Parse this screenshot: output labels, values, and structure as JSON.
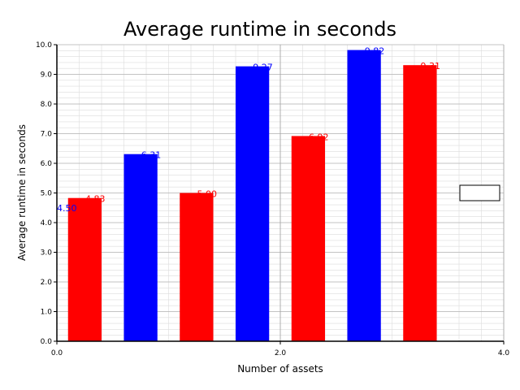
{
  "chart_data": {
    "type": "bar",
    "title": "Average runtime in seconds",
    "xlabel": "Number of assets",
    "ylabel": "Average runtime in seconds",
    "xlim": [
      0,
      4
    ],
    "ylim": [
      0,
      10
    ],
    "x_ticks": [
      "0.0",
      "2.0",
      "4.0"
    ],
    "y_ticks": [
      "0.0",
      "1.0",
      "2.0",
      "3.0",
      "4.0",
      "5.0",
      "6.0",
      "7.0",
      "8.0",
      "9.0",
      "10.0"
    ],
    "grid": true,
    "legend": "right",
    "bars": [
      {
        "x_start": 0.1,
        "x_end": 0.4,
        "value": 4.83,
        "label": "4.83",
        "color": "#ff0000"
      },
      {
        "x_start": 0.6,
        "x_end": 0.9,
        "value": 6.31,
        "label": "6.31",
        "color": "#0000ff"
      },
      {
        "x_start": 1.1,
        "x_end": 1.4,
        "value": 5.0,
        "label": "5.00",
        "color": "#ff0000"
      },
      {
        "x_start": 1.6,
        "x_end": 1.9,
        "value": 9.27,
        "label": "9.27",
        "color": "#0000ff"
      },
      {
        "x_start": 2.1,
        "x_end": 2.4,
        "value": 6.92,
        "label": "6.92",
        "color": "#ff0000"
      },
      {
        "x_start": 2.6,
        "x_end": 2.9,
        "value": 9.82,
        "label": "9.82",
        "color": "#0000ff"
      },
      {
        "x_start": 3.1,
        "x_end": 3.4,
        "value": 9.31,
        "label": "9.31",
        "color": "#ff0000"
      }
    ],
    "annotations": [
      {
        "x": 0.0,
        "y": 4.5,
        "text": "4.50",
        "color": "#0000ff"
      }
    ]
  }
}
